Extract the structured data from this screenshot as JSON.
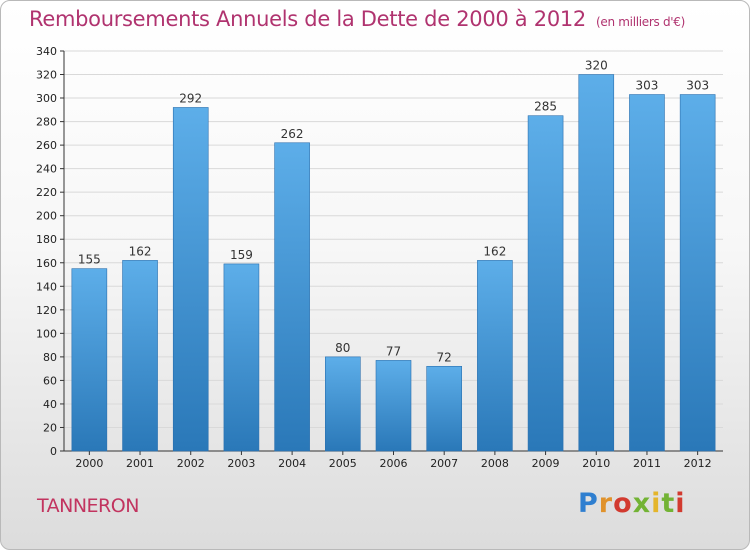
{
  "colors": {
    "title": "#b0336f",
    "bar_light": "#5daee9",
    "bar_dark": "#2a78b8",
    "axis": "#333333",
    "grid": "#d9d9d9"
  },
  "chart_data": {
    "type": "bar",
    "title": "Remboursements Annuels de la Dette de 2000 à 2012",
    "unit_note": "(en milliers d'€)",
    "xlabel": "",
    "ylabel": "",
    "categories": [
      "2000",
      "2001",
      "2002",
      "2003",
      "2004",
      "2005",
      "2006",
      "2007",
      "2008",
      "2009",
      "2010",
      "2011",
      "2012"
    ],
    "values": [
      155,
      162,
      292,
      159,
      262,
      80,
      77,
      72,
      162,
      285,
      320,
      303,
      303
    ],
    "value_labels": [
      "155",
      "162",
      "292",
      "159",
      "262",
      "80",
      "77",
      "72",
      "162",
      "285",
      "320",
      "303",
      "303"
    ],
    "ylim": [
      0,
      340
    ],
    "ytick_step": 20,
    "grid": true,
    "legend": "none"
  },
  "footer": {
    "town": "TANNERON",
    "logo": "Proxiti"
  }
}
